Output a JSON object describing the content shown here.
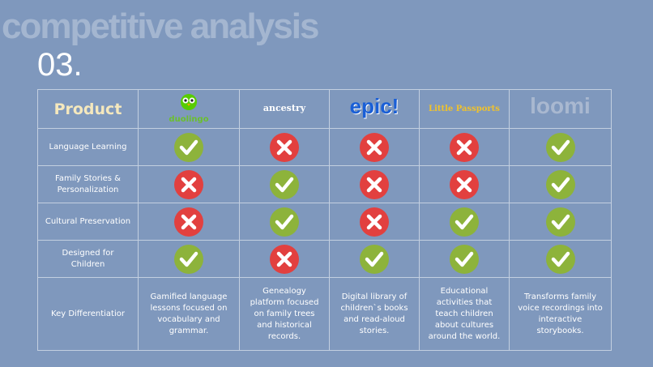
{
  "header": {
    "title": "competitive analysis",
    "number": "03."
  },
  "table": {
    "columns": [
      "Product",
      "duolingo",
      "ancestry",
      "epic!",
      "Little Passports",
      "loomi"
    ],
    "rows": [
      {
        "label": "Language Learning",
        "checks": [
          true,
          false,
          false,
          false,
          true
        ]
      },
      {
        "label": "Family Stories & Personalization",
        "checks": [
          false,
          true,
          false,
          false,
          true
        ]
      },
      {
        "label": "Cultural Preservation",
        "checks": [
          false,
          true,
          false,
          true,
          true
        ]
      },
      {
        "label": "Designed for Children",
        "checks": [
          true,
          false,
          true,
          true,
          true
        ]
      }
    ],
    "differentiator": {
      "label": "Key Differentiatior",
      "texts": [
        "Gamified language lessons focused on vocabulary and grammar.",
        "Genealogy platform focused on family trees and historical records.",
        "Digital library of children`s books and read-aloud stories.",
        "Educational activities that teach children about cultures around the world.",
        "Transforms family voice recordings into interactive storybooks."
      ]
    }
  }
}
